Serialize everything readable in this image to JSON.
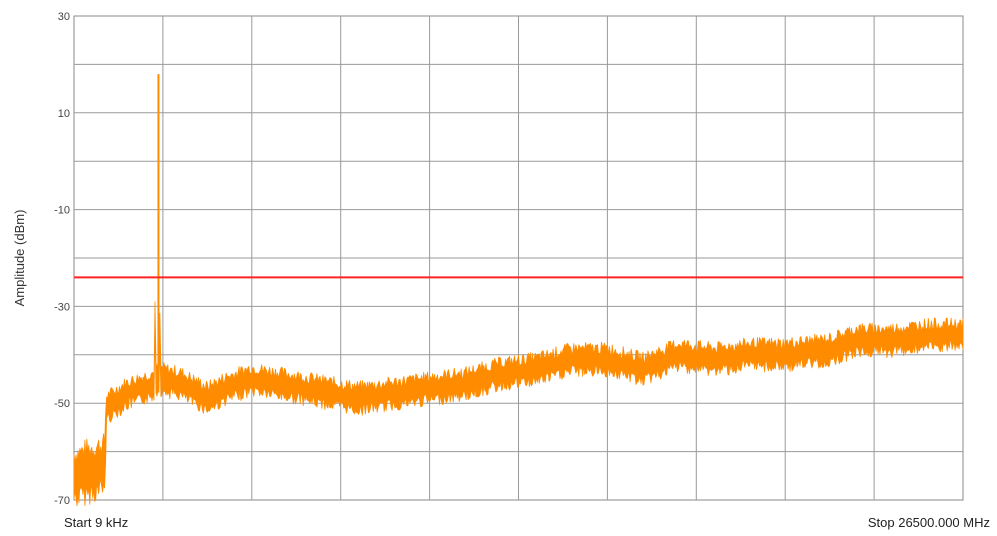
{
  "chart_data": {
    "type": "line",
    "title": "",
    "xlabel": "",
    "ylabel": "Amplitude (dBm)",
    "ylim": [
      -70,
      30
    ],
    "y_ticks": [
      30,
      10,
      -10,
      -30,
      -50,
      -70
    ],
    "y_tick_labels": [
      "30",
      "10",
      "-10",
      "-30",
      "-50",
      "-70"
    ],
    "x_start_label": "Start 9 kHz",
    "x_stop_label": "Stop 26500.000 MHz",
    "grid": true,
    "grid_divisions_x": 10,
    "grid_divisions_y": 10,
    "series": [
      {
        "color": "#ff8c00",
        "points": [
          [
            0.0,
            -65
          ],
          [
            0.035,
            -63
          ],
          [
            0.036,
            -51
          ],
          [
            0.06,
            -48
          ],
          [
            0.09,
            -46
          ],
          [
            0.095,
            18
          ],
          [
            0.097,
            -45
          ],
          [
            0.12,
            -46
          ],
          [
            0.15,
            -49
          ],
          [
            0.17,
            -47
          ],
          [
            0.2,
            -45
          ],
          [
            0.23,
            -46
          ],
          [
            0.26,
            -47
          ],
          [
            0.29,
            -48
          ],
          [
            0.32,
            -49
          ],
          [
            0.36,
            -48
          ],
          [
            0.4,
            -47
          ],
          [
            0.44,
            -46
          ],
          [
            0.48,
            -44
          ],
          [
            0.52,
            -43
          ],
          [
            0.56,
            -41
          ],
          [
            0.6,
            -41
          ],
          [
            0.64,
            -43
          ],
          [
            0.68,
            -40
          ],
          [
            0.72,
            -41
          ],
          [
            0.76,
            -40
          ],
          [
            0.8,
            -40
          ],
          [
            0.85,
            -39
          ],
          [
            0.88,
            -37
          ],
          [
            0.92,
            -37
          ],
          [
            0.96,
            -36
          ],
          [
            1.0,
            -36
          ]
        ]
      },
      {
        "color": "#ff2222",
        "points": [
          [
            0.0,
            -24
          ],
          [
            1.0,
            -24
          ]
        ]
      }
    ]
  }
}
